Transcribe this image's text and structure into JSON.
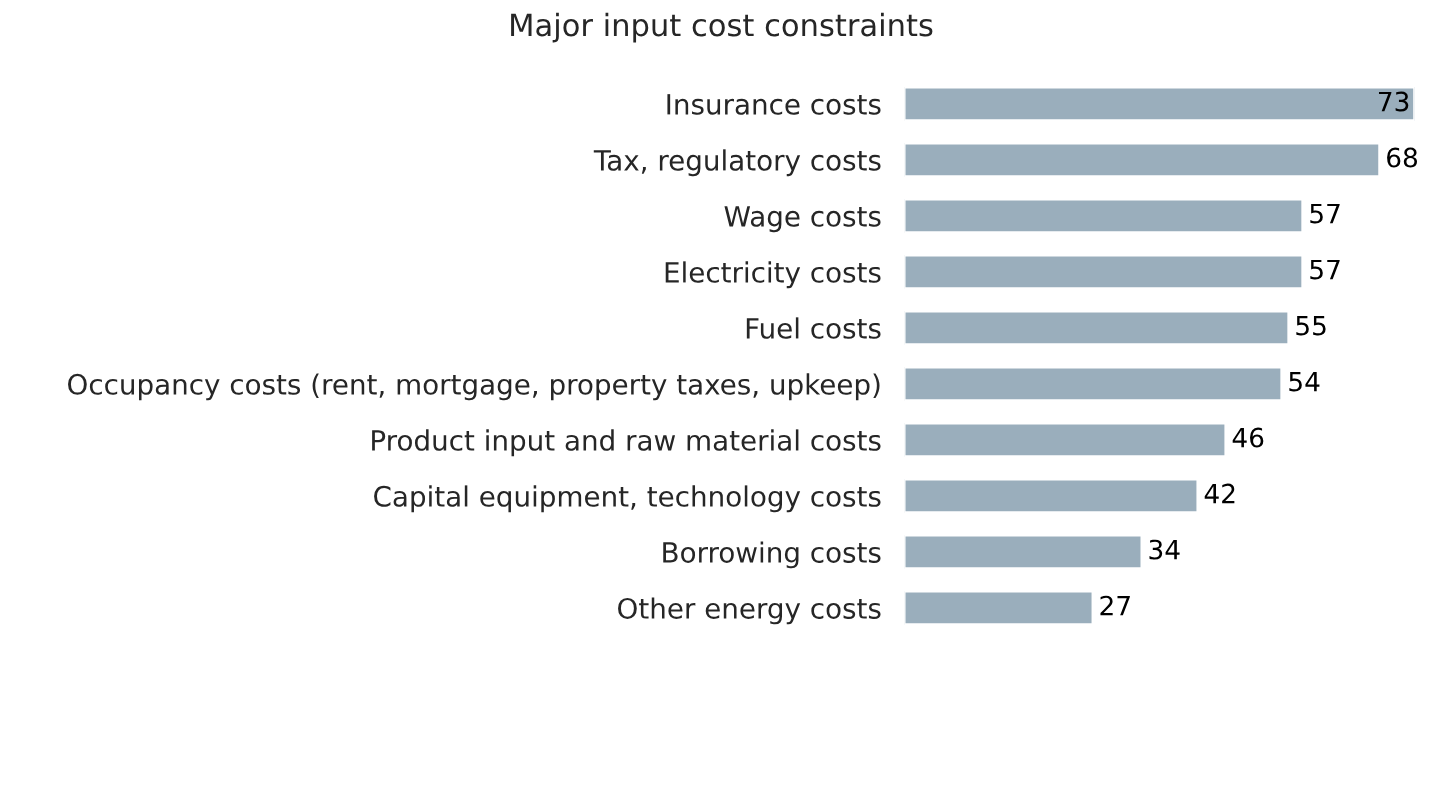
{
  "chart_data": {
    "type": "bar",
    "orientation": "horizontal",
    "title": "Major input cost constraints",
    "categories": [
      "Insurance costs",
      "Tax, regulatory costs",
      "Wage costs",
      "Electricity costs",
      "Fuel costs",
      "Occupancy costs (rent, mortgage, property taxes, upkeep)",
      "Product input and raw material costs",
      "Capital equipment, technology costs",
      "Borrowing costs",
      "Other energy costs"
    ],
    "values": [
      73,
      68,
      57,
      57,
      55,
      54,
      46,
      42,
      34,
      27
    ],
    "color": "#9aaebc",
    "data_labels": true,
    "grid": false,
    "legend": false
  }
}
